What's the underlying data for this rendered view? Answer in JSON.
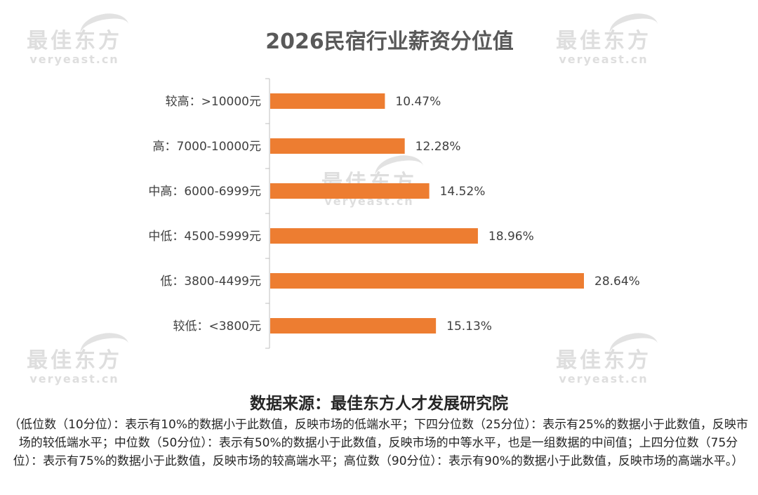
{
  "watermark": {
    "brand": "最佳东方",
    "domain": "veryeast.cn"
  },
  "chart_data": {
    "type": "bar",
    "orientation": "horizontal",
    "title": "2026民宿行业薪资分位值",
    "categories": [
      "较高：>10000元",
      "高：7000-10000元",
      "中高：6000-6999元",
      "中低：4500-5999元",
      "低：3800-4499元",
      "较低：<3800元"
    ],
    "values": [
      10.47,
      12.28,
      14.52,
      18.96,
      28.64,
      15.13
    ],
    "value_labels": [
      "10.47%",
      "12.28%",
      "14.52%",
      "18.96%",
      "28.64%",
      "15.13%"
    ],
    "xlim": [
      0,
      30
    ],
    "bar_color": "#ed7d31",
    "axis_color": "#bfbfbf",
    "grid": false,
    "legend": "none"
  },
  "source": "数据来源：最佳东方人才发展研究院",
  "note": "（低位数（10分位）：表示有10%的数据小于此数值，反映市场的低端水平；下四分位数（25分位）：表示有25%的数据小于此数值，反映市场的较低端水平；中位数（50分位）：表示有50%的数据小于此数值，反映市场的中等水平，也是一组数据的中间值；上四分位数（75分位）：表示有75%的数据小于此数值，反映市场的较高端水平；高位数（90分位）：表示有90%的数据小于此数值，反映市场的高端水平。）"
}
